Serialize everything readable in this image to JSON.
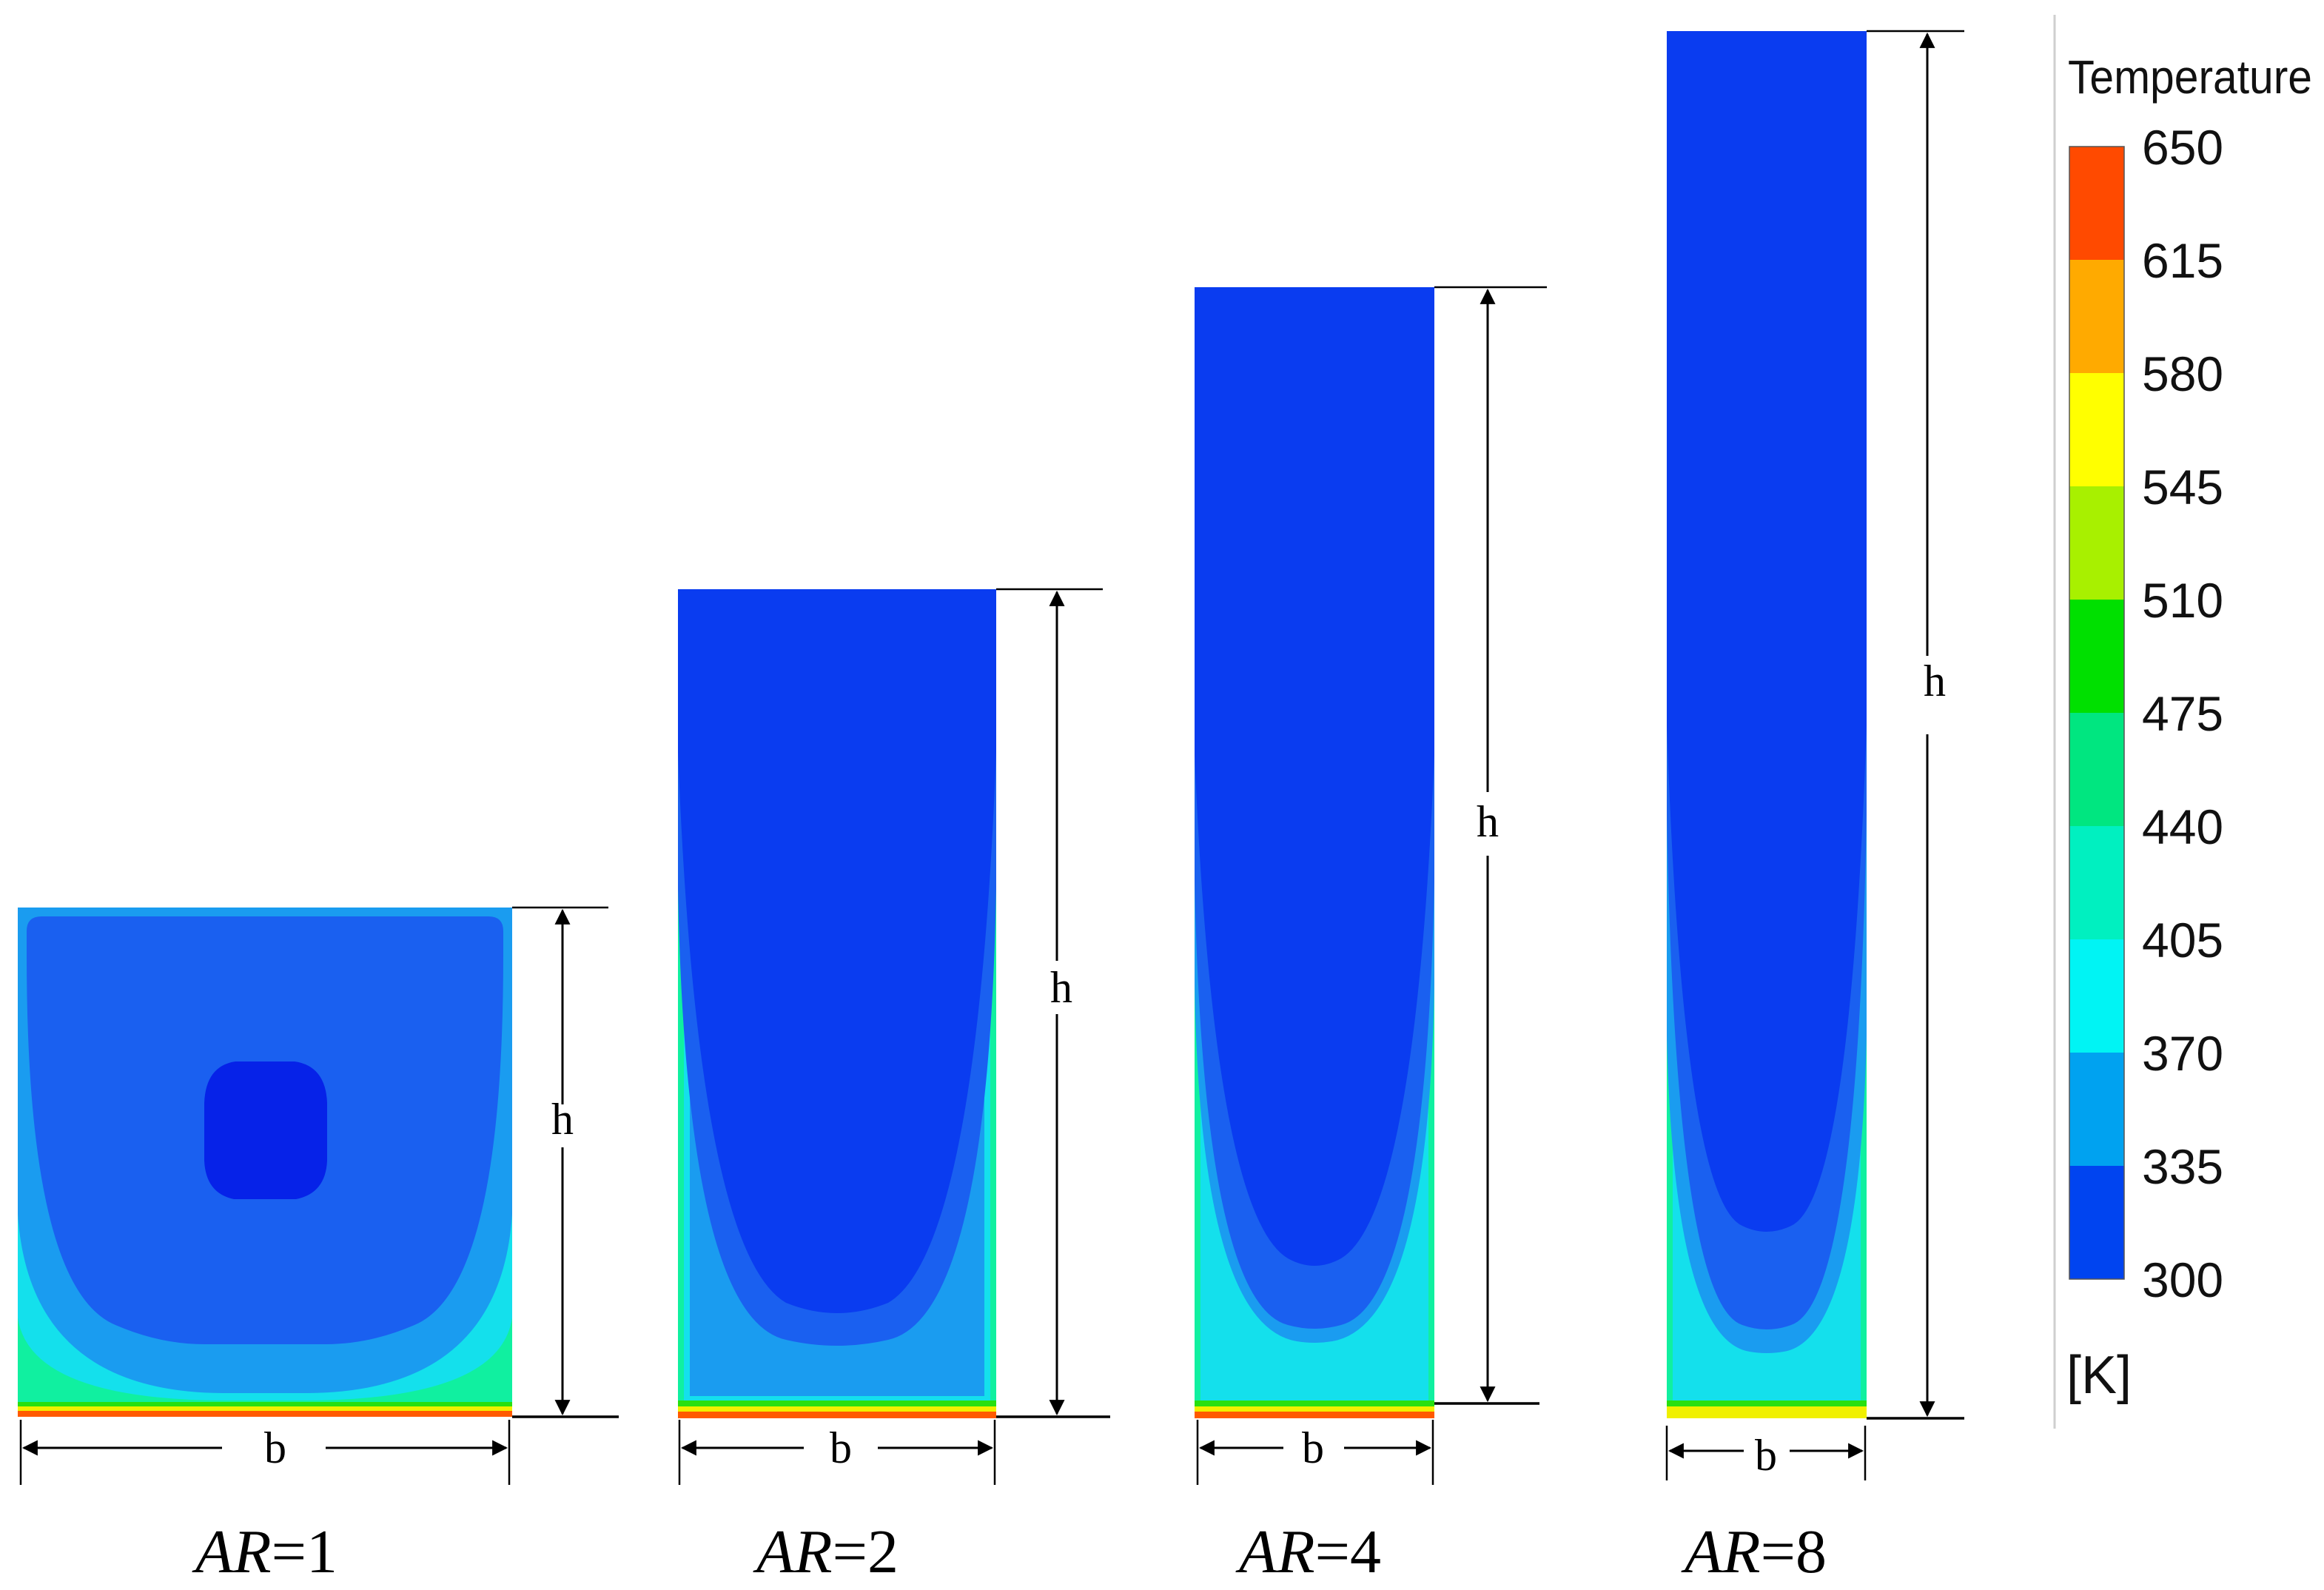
{
  "diagram": {
    "dimension_labels": {
      "height": "h",
      "width": "b"
    },
    "cavities": [
      {
        "ar_symbol": "AR",
        "ar_value": "=1"
      },
      {
        "ar_symbol": "AR",
        "ar_value": "=2"
      },
      {
        "ar_symbol": "AR",
        "ar_value": "=4"
      },
      {
        "ar_symbol": "AR",
        "ar_value": "=8"
      }
    ]
  },
  "legend": {
    "title": "Temperature",
    "unit": "[K]",
    "ticks": [
      "650",
      "615",
      "580",
      "545",
      "510",
      "475",
      "440",
      "405",
      "370",
      "335",
      "300"
    ],
    "band_colors": [
      "#ff4a00",
      "#ffaa00",
      "#ffff00",
      "#a8f000",
      "#00e000",
      "#00e680",
      "#00f0c0",
      "#00f4f4",
      "#00a2f0",
      "#0044f0"
    ]
  }
}
